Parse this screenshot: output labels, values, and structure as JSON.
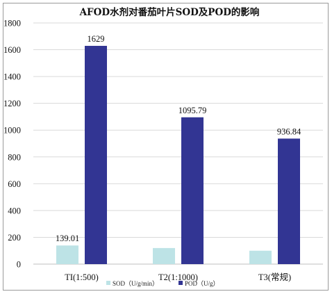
{
  "chart_data": {
    "type": "bar",
    "title": "AFOD水剂对番茄叶片SOD及POD的影响",
    "xlabel": "",
    "ylabel": "",
    "categories": [
      "TI(1:500)",
      "T2(1:1000)",
      "T3(常规)"
    ],
    "series": [
      {
        "name": "SOD（U/g/min）",
        "color": "#bde3e6",
        "values": [
          139.01,
          120,
          100
        ],
        "data_labels": [
          "139.01",
          null,
          null
        ]
      },
      {
        "name": "POD（U/g）",
        "color": "#323593",
        "values": [
          1629,
          1095.79,
          936.84
        ],
        "data_labels": [
          "1629",
          "1095.79",
          "936.84"
        ]
      }
    ],
    "ylim": [
      0,
      1800
    ],
    "yticks": [
      "0",
      "200",
      "400",
      "600",
      "800",
      "1000",
      "1200",
      "1400",
      "1600",
      "1800"
    ],
    "grid": true,
    "legend_position": "bottom"
  }
}
